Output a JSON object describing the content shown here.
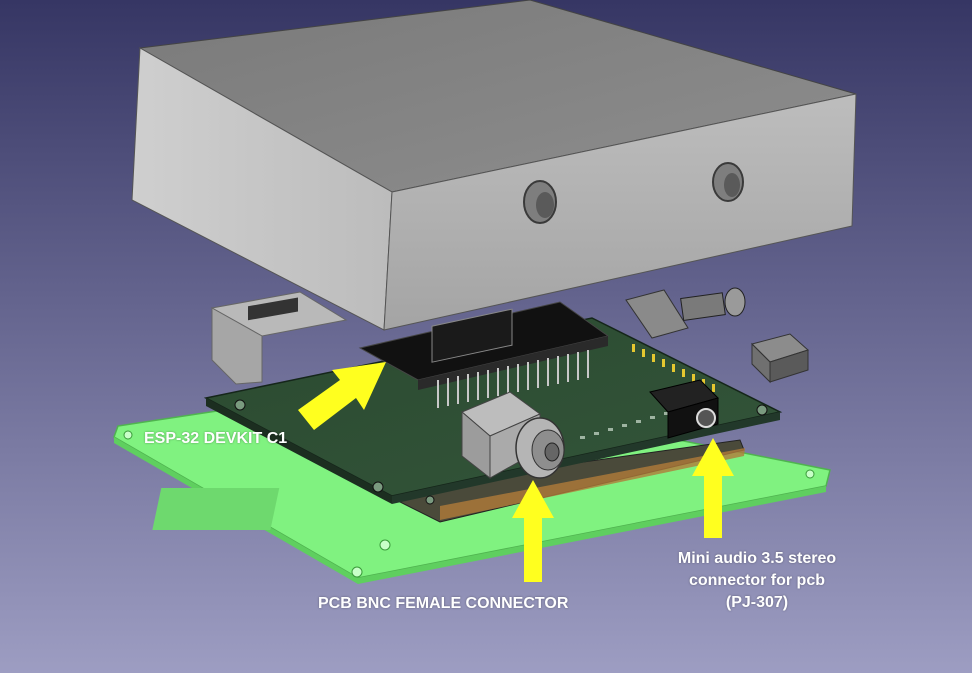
{
  "labels": {
    "esp32": "ESP-32 DEVKIT C1",
    "bnc": "PCB BNC FEMALE CONNECTOR",
    "audio_line1": "Mini audio 3.5 stereo",
    "audio_line2": "connector  for pcb",
    "audio_line3": "(PJ-307)"
  },
  "colors": {
    "background_top": "#3a3a6a",
    "background_bottom": "#9c9cc0",
    "case": "#8a8a8a",
    "pcb": "#2e4a33",
    "base_plate": "#7ff27f",
    "arrow": "#ffff1f",
    "label_text": "#ffffff"
  }
}
